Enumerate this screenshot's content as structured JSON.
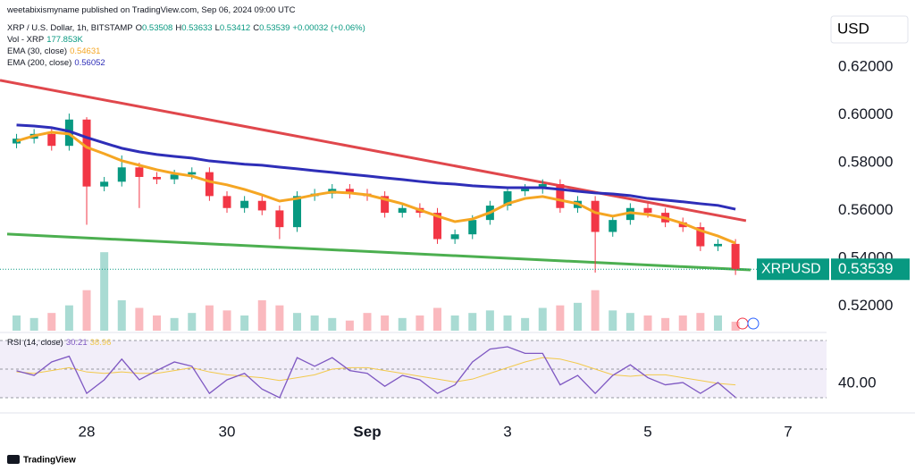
{
  "header": {
    "publisher": "weetabixismyname published on TradingView.com, Sep 06, 2024 09:00 UTC"
  },
  "footer": {
    "brand": "TradingView"
  },
  "chart_data": [
    {
      "type": "candlestick",
      "title": "XRP / U.S. Dollar, 1h, BITSTAMP",
      "quote": [
        {
          "label": "O",
          "value": 0.53508
        },
        {
          "label": "H",
          "value": 0.53633
        },
        {
          "label": "L",
          "value": 0.53412
        },
        {
          "label": "C",
          "value": 0.53539
        }
      ],
      "change": "+0.00032 (+0.06%)",
      "symbol": "XRPUSD",
      "currency": "USD",
      "up_color": "#089981",
      "down_color": "#f23645",
      "x": [
        27,
        27.25,
        27.5,
        27.75,
        28,
        28.25,
        28.5,
        28.75,
        29,
        29.25,
        29.5,
        29.75,
        30,
        30.25,
        30.5,
        30.75,
        31,
        31.25,
        31.5,
        31.75,
        32,
        32.25,
        32.5,
        32.75,
        33,
        33.25,
        33.5,
        33.75,
        34,
        34.25,
        34.5,
        34.75,
        35,
        35.25,
        35.5,
        35.75,
        36,
        36.25,
        36.5,
        36.75,
        37,
        37.25
      ],
      "open": [
        0.588,
        0.59,
        0.592,
        0.587,
        0.598,
        0.57,
        0.572,
        0.578,
        0.574,
        0.573,
        0.575,
        0.576,
        0.566,
        0.561,
        0.564,
        0.56,
        0.553,
        0.566,
        0.567,
        0.569,
        0.567,
        0.566,
        0.559,
        0.561,
        0.559,
        0.548,
        0.55,
        0.556,
        0.562,
        0.568,
        0.569,
        0.571,
        0.561,
        0.564,
        0.551,
        0.556,
        0.561,
        0.559,
        0.555,
        0.553,
        0.545,
        0.546
      ],
      "high": [
        0.592,
        0.594,
        0.594,
        0.6005,
        0.599,
        0.574,
        0.583,
        0.58,
        0.576,
        0.577,
        0.578,
        0.578,
        0.568,
        0.566,
        0.566,
        0.562,
        0.568,
        0.569,
        0.571,
        0.571,
        0.569,
        0.568,
        0.563,
        0.563,
        0.561,
        0.552,
        0.558,
        0.564,
        0.57,
        0.571,
        0.573,
        0.573,
        0.566,
        0.566,
        0.558,
        0.563,
        0.563,
        0.561,
        0.557,
        0.555,
        0.548,
        0.548
      ],
      "low": [
        0.586,
        0.588,
        0.585,
        0.585,
        0.554,
        0.568,
        0.57,
        0.561,
        0.571,
        0.571,
        0.573,
        0.564,
        0.559,
        0.559,
        0.558,
        0.548,
        0.551,
        0.564,
        0.565,
        0.565,
        0.564,
        0.557,
        0.557,
        0.557,
        0.546,
        0.546,
        0.548,
        0.554,
        0.56,
        0.566,
        0.567,
        0.559,
        0.559,
        0.534,
        0.549,
        0.554,
        0.557,
        0.553,
        0.551,
        0.543,
        0.543,
        0.533
      ],
      "close": [
        0.59,
        0.592,
        0.587,
        0.598,
        0.57,
        0.572,
        0.578,
        0.574,
        0.573,
        0.575,
        0.576,
        0.566,
        0.561,
        0.564,
        0.56,
        0.553,
        0.566,
        0.567,
        0.569,
        0.567,
        0.566,
        0.559,
        0.561,
        0.559,
        0.548,
        0.55,
        0.556,
        0.562,
        0.568,
        0.569,
        0.571,
        0.561,
        0.564,
        0.551,
        0.556,
        0.561,
        0.559,
        0.555,
        0.553,
        0.545,
        0.546,
        0.53539
      ],
      "volume": {
        "name": "Vol - XRP",
        "value_label": "177.853K",
        "ylim": [
          0,
          3000000
        ],
        "values": [
          300000,
          250000,
          350000,
          500000,
          800000,
          1550000,
          600000,
          450000,
          300000,
          250000,
          350000,
          500000,
          400000,
          300000,
          600000,
          500000,
          350000,
          300000,
          250000,
          200000,
          350000,
          300000,
          250000,
          300000,
          450000,
          300000,
          350000,
          400000,
          300000,
          250000,
          450000,
          500000,
          550000,
          800000,
          400000,
          350000,
          300000,
          250000,
          300000,
          350000,
          300000,
          177853
        ]
      },
      "series": [
        {
          "name": "EMA (30, close)",
          "color": "#f5a623",
          "values": [
            0.589,
            0.5912,
            0.5927,
            0.592,
            0.5864,
            0.5837,
            0.5808,
            0.5789,
            0.577,
            0.5755,
            0.5744,
            0.5721,
            0.5707,
            0.5688,
            0.5665,
            0.5639,
            0.565,
            0.5665,
            0.5677,
            0.5673,
            0.5665,
            0.5647,
            0.5628,
            0.5602,
            0.5576,
            0.5553,
            0.5564,
            0.5591,
            0.5628,
            0.565,
            0.5658,
            0.5643,
            0.5628,
            0.5591,
            0.5576,
            0.5591,
            0.5583,
            0.5568,
            0.5546,
            0.5516,
            0.5493,
            0.54631
          ]
        },
        {
          "name": "EMA (200, close)",
          "color": "#2e2eb8",
          "values": [
            0.5957,
            0.5953,
            0.5946,
            0.5931,
            0.5905,
            0.5882,
            0.586,
            0.5845,
            0.5834,
            0.5826,
            0.5819,
            0.5807,
            0.58,
            0.5793,
            0.5789,
            0.5781,
            0.5774,
            0.5766,
            0.5759,
            0.5751,
            0.5744,
            0.5736,
            0.5729,
            0.5721,
            0.5714,
            0.571,
            0.5703,
            0.5699,
            0.5695,
            0.5695,
            0.5695,
            0.5688,
            0.568,
            0.5673,
            0.5669,
            0.5662,
            0.565,
            0.5643,
            0.5636,
            0.5628,
            0.5621,
            0.56052
          ]
        }
      ],
      "trendlines": [
        {
          "color": "#e0474c",
          "x": [
            26.764,
            37.4
          ],
          "y": [
            0.6144,
            0.5557
          ]
        },
        {
          "color": "#4caf50",
          "x": [
            26.866,
            37.465
          ],
          "y": [
            0.5501,
            0.5351
          ]
        }
      ],
      "ylim": [
        0.5097,
        0.648
      ],
      "yticks": [
        {
          "value": 0.52,
          "label": "0.52000"
        },
        {
          "value": 0.54,
          "label": "0.54000"
        },
        {
          "value": 0.56,
          "label": "0.56000"
        },
        {
          "value": 0.58,
          "label": "0.58000"
        },
        {
          "value": 0.6,
          "label": "0.60000"
        },
        {
          "value": 0.62,
          "label": "0.62000"
        }
      ]
    },
    {
      "type": "line",
      "title": "RSI (14, close)",
      "series": [
        {
          "color": "#7e57c2",
          "values": [
            48.8,
            45.6,
            55,
            59,
            33,
            42.5,
            57,
            42.5,
            49,
            55,
            52,
            33,
            42.5,
            47,
            36,
            30,
            58,
            52,
            58,
            49,
            47,
            38,
            45.6,
            42.5,
            33,
            39,
            55,
            64,
            65.6,
            61,
            61,
            39,
            45.6,
            33,
            45.6,
            53,
            44,
            39,
            40.6,
            33,
            40.6,
            30.21
          ]
        },
        {
          "color": "#f2c94c",
          "values": [
            48,
            47,
            49,
            51,
            48,
            47,
            48,
            47,
            47,
            49,
            51,
            48,
            46,
            45,
            44,
            42,
            44,
            46,
            50,
            51,
            51,
            49,
            47,
            45,
            43,
            41,
            43,
            47,
            51,
            55,
            58,
            57,
            54,
            50,
            46,
            45,
            46,
            46,
            44,
            42,
            40,
            38.96
          ]
        }
      ],
      "levels": [
        30,
        50,
        70
      ],
      "band_color": "rgba(126,87,194,0.10)",
      "ylim": [
        20.6,
        73.75
      ],
      "yticks": [
        {
          "value": 40,
          "label": "40.00"
        }
      ],
      "xlim": [
        26.764,
        38.548
      ],
      "xticks": [
        28,
        30,
        {
          "value": 32,
          "label": "Sep"
        },
        {
          "value": 34,
          "label": "3"
        },
        {
          "value": 36,
          "label": "5"
        },
        {
          "value": 38,
          "label": "7"
        }
      ]
    }
  ]
}
